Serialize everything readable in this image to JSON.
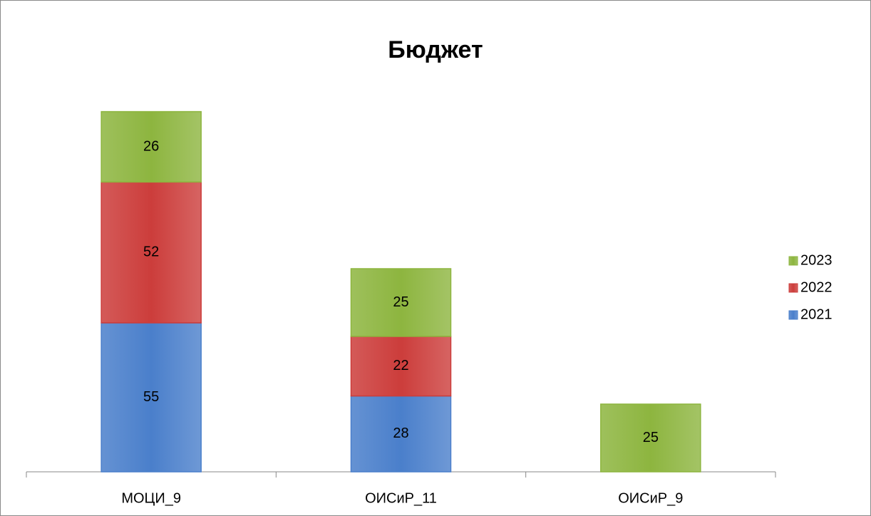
{
  "chart_data": {
    "type": "stacked_bar",
    "title": "Бюджет",
    "categories": [
      "МОЦИ_9",
      "ОИСиР_11",
      "ОИСиР_9"
    ],
    "series": [
      {
        "name": "2021",
        "color": "#4a7fcb",
        "values": [
          55,
          28,
          null
        ]
      },
      {
        "name": "2022",
        "color": "#cc3d3b",
        "values": [
          52,
          22,
          null
        ]
      },
      {
        "name": "2023",
        "color": "#8db53f",
        "values": [
          26,
          25,
          25
        ]
      }
    ],
    "legend": "right"
  }
}
